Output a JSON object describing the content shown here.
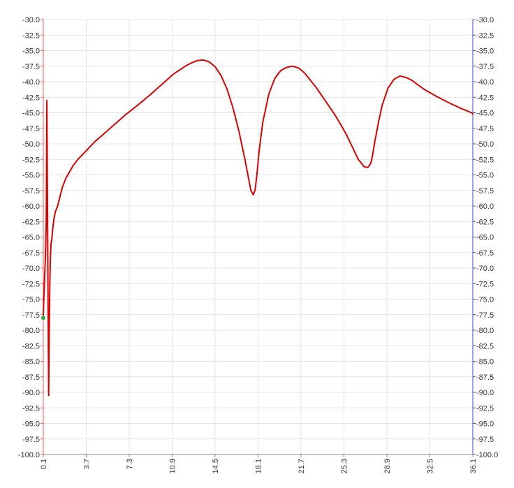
{
  "chart_data": {
    "type": "line",
    "title": "",
    "xlabel": "",
    "ylabel": "",
    "xlim": [
      0.1,
      36.1
    ],
    "ylim": [
      -100.0,
      -30.0
    ],
    "grid": true,
    "x_ticks": [
      "0.1",
      "3.7",
      "7.3",
      "10.9",
      "14.5",
      "18.1",
      "21.7",
      "25.3",
      "28.9",
      "32.5",
      "36.1"
    ],
    "y_ticks_left": [
      "-30.0",
      "-32.5",
      "-35.0",
      "-37.5",
      "-40.0",
      "-42.5",
      "-45.0",
      "-47.5",
      "-50.0",
      "-52.5",
      "-55.0",
      "-57.5",
      "-60.0",
      "-62.5",
      "-65.0",
      "-67.5",
      "-70.0",
      "-72.5",
      "-75.0",
      "-77.5",
      "-80.0",
      "-82.5",
      "-85.0",
      "-87.5",
      "-90.0",
      "-92.5",
      "-95.0",
      "-97.5",
      "-100.0"
    ],
    "y_ticks_right": [
      "-30.0",
      "-32.5",
      "-35.0",
      "-37.5",
      "-40.0",
      "-42.5",
      "-45.0",
      "-47.5",
      "-50.0",
      "-52.5",
      "-55.0",
      "-57.5",
      "-60.0",
      "-62.5",
      "-65.0",
      "-67.5",
      "-70.0",
      "-72.5",
      "-75.0",
      "-77.5",
      "-80.0",
      "-82.5",
      "-85.0",
      "-87.5",
      "-90.0",
      "-92.5",
      "-95.0",
      "-97.5",
      "-100.0"
    ],
    "colors": {
      "series": "#dd0000",
      "marker": "#33aa33",
      "left_axis": "#ff5555",
      "right_axis": "#4444cc",
      "grid": "#e6e6e6"
    },
    "marker": {
      "x": 0.1,
      "y": -78.0
    },
    "series": [
      {
        "x": [
          0.1,
          0.2,
          0.3,
          0.35,
          0.4,
          0.45,
          0.5,
          0.55,
          0.6,
          0.65,
          0.7,
          0.75,
          0.8,
          0.9,
          1.0,
          1.1,
          1.3,
          1.5,
          1.7,
          2.0,
          2.3,
          2.6,
          3.0,
          3.5,
          4.0,
          4.5,
          5.0,
          6.0,
          7.0,
          8.0,
          9.0,
          10.0,
          11.0,
          12.0,
          12.5,
          13.0,
          13.5,
          14.0,
          14.5,
          15.0,
          15.5,
          16.0,
          16.5,
          17.0,
          17.3,
          17.5,
          17.7,
          17.85,
          18.0,
          18.2,
          18.5,
          19.0,
          19.5,
          20.0,
          20.5,
          21.0,
          21.5,
          22.0,
          22.5,
          23.0,
          23.5,
          24.0,
          24.5,
          25.0,
          25.5,
          26.0,
          26.5,
          27.0,
          27.3,
          27.5,
          27.6,
          27.7,
          27.9,
          28.2,
          28.5,
          29.0,
          29.5,
          30.0,
          30.5,
          31.0,
          31.5,
          32.0,
          33.0,
          34.0,
          35.0,
          36.0,
          36.1
        ],
        "y": [
          -77.5,
          -72.0,
          -67.0,
          -62.0,
          -43.0,
          -60.0,
          -75.0,
          -90.5,
          -80.0,
          -72.0,
          -68.0,
          -66.0,
          -65.5,
          -63.5,
          -62.0,
          -61.0,
          -60.0,
          -58.5,
          -57.0,
          -55.5,
          -54.5,
          -53.5,
          -52.5,
          -51.5,
          -50.5,
          -49.5,
          -48.7,
          -47.0,
          -45.3,
          -43.8,
          -42.2,
          -40.5,
          -38.8,
          -37.5,
          -37.0,
          -36.6,
          -36.5,
          -36.8,
          -37.6,
          -39.0,
          -41.2,
          -44.2,
          -48.0,
          -52.5,
          -55.5,
          -57.5,
          -58.2,
          -57.5,
          -55.0,
          -51.0,
          -46.5,
          -42.0,
          -39.5,
          -38.2,
          -37.7,
          -37.5,
          -37.8,
          -38.6,
          -39.8,
          -41.0,
          -42.4,
          -43.8,
          -45.2,
          -46.8,
          -48.5,
          -50.5,
          -52.5,
          -53.7,
          -53.8,
          -53.3,
          -52.8,
          -51.8,
          -49.5,
          -46.5,
          -43.8,
          -41.0,
          -39.6,
          -39.1,
          -39.3,
          -39.8,
          -40.5,
          -41.2,
          -42.3,
          -43.3,
          -44.2,
          -45.0,
          -45.2
        ]
      }
    ]
  }
}
